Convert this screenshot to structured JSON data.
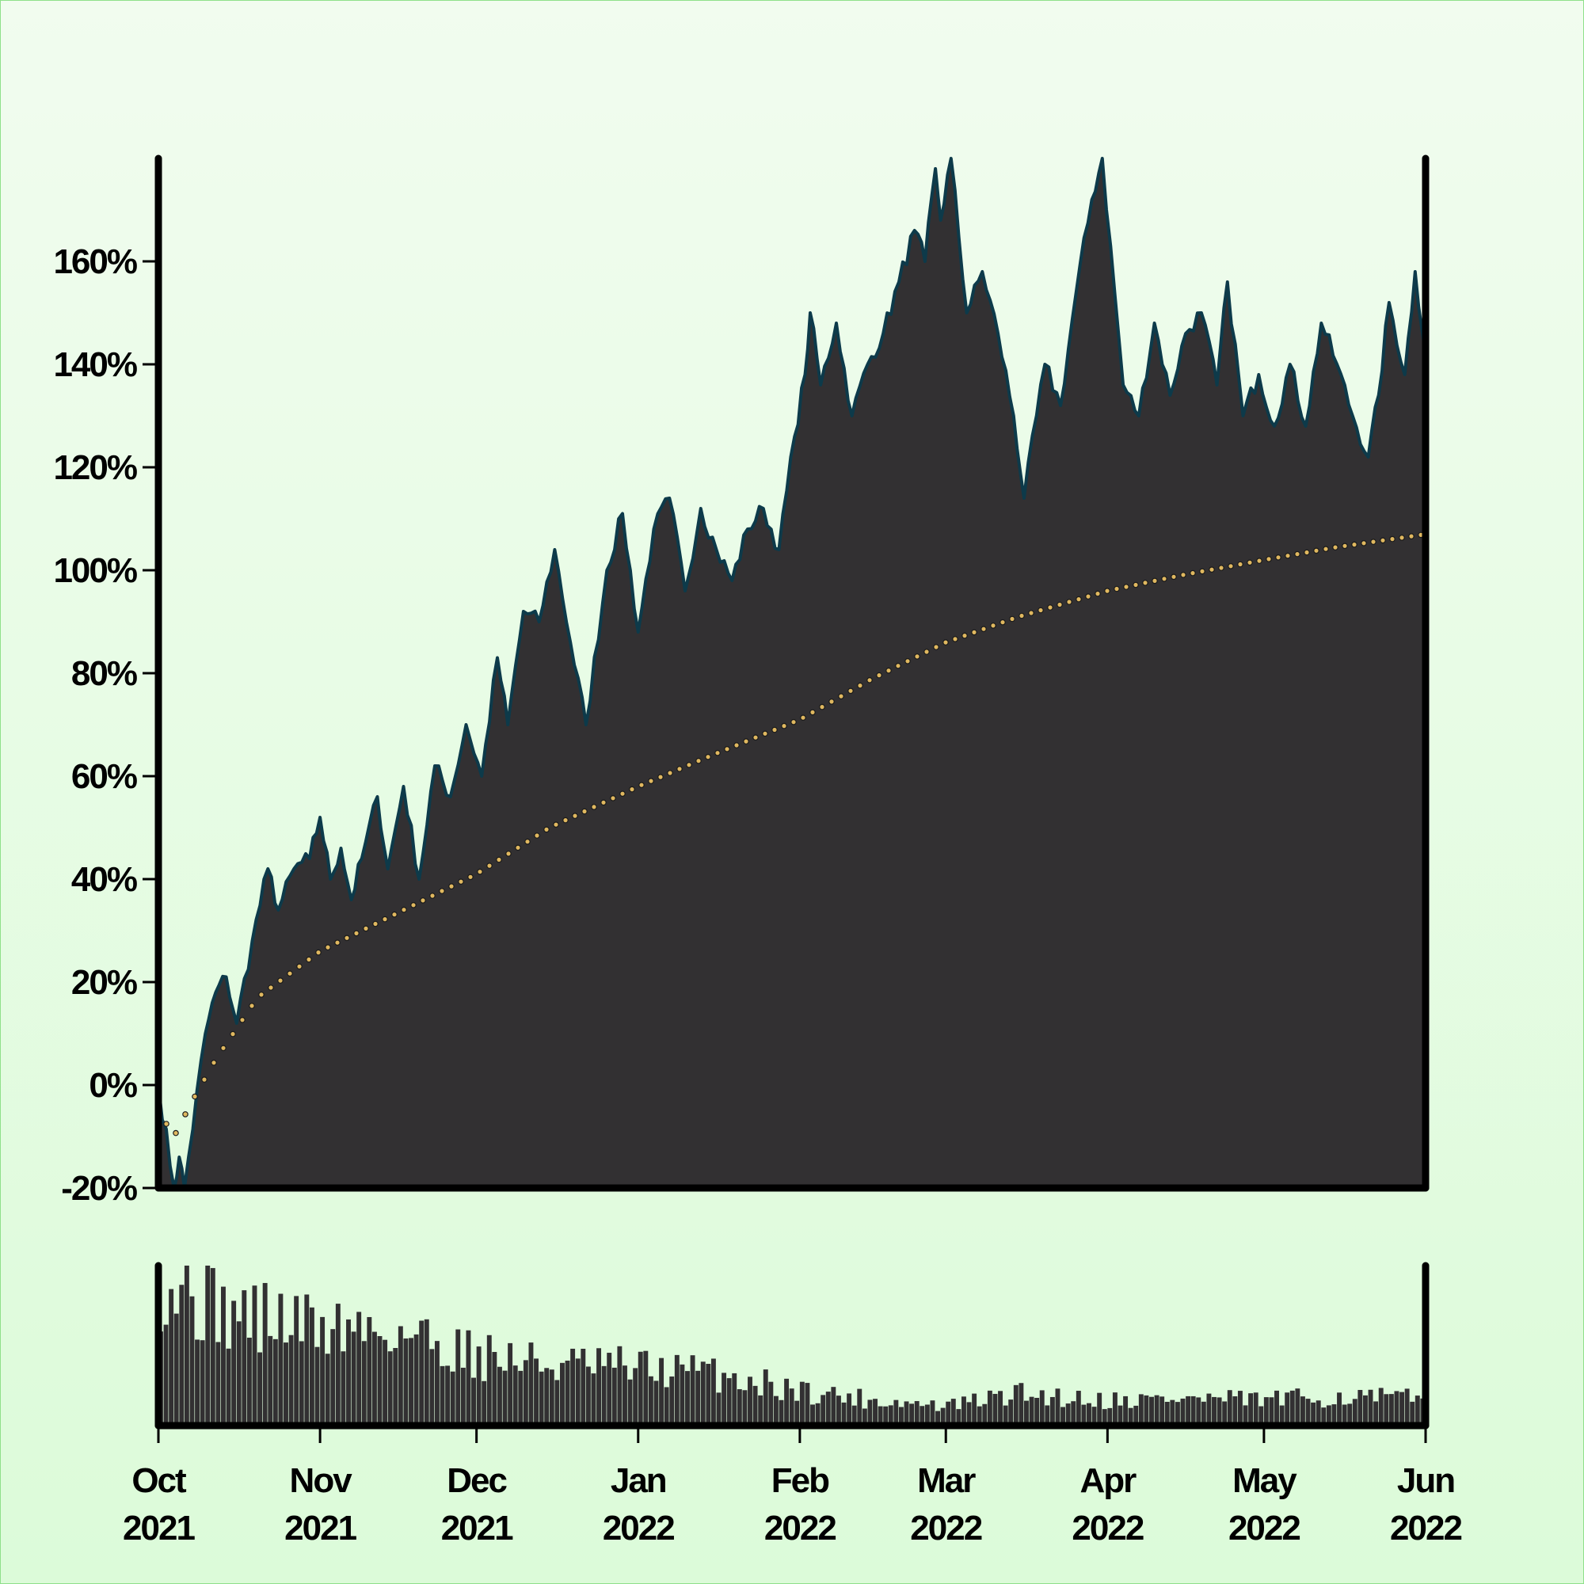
{
  "colors": {
    "background_top": "#f1fcef",
    "background_bottom": "#dcfbd9",
    "area_fill": "#323032",
    "price_line": "#0d3a4a",
    "average_dots": "#e0b860",
    "axis": "#000000"
  },
  "chart_data": [
    {
      "type": "area",
      "title": "",
      "xlabel": "",
      "ylabel": "",
      "x_range": [
        "2021-10-01",
        "2022-06-01"
      ],
      "ylim": [
        -20,
        180
      ],
      "y_ticks": [
        -20,
        0,
        20,
        40,
        60,
        80,
        100,
        120,
        140,
        160
      ],
      "y_tick_labels": [
        "-20%",
        "0%",
        "20%",
        "40%",
        "60%",
        "80%",
        "100%",
        "120%",
        "140%",
        "160%"
      ],
      "grid": false,
      "series": [
        {
          "style": "filled area with outline",
          "points": [
            [
              "2021-10-01",
              0
            ],
            [
              "2021-10-04",
              -20
            ],
            [
              "2021-10-05",
              -14
            ],
            [
              "2021-10-06",
              -20
            ],
            [
              "2021-10-10",
              10
            ],
            [
              "2021-10-12",
              18
            ],
            [
              "2021-10-14",
              21
            ],
            [
              "2021-10-16",
              12
            ],
            [
              "2021-10-19",
              28
            ],
            [
              "2021-10-22",
              42
            ],
            [
              "2021-10-24",
              34
            ],
            [
              "2021-10-27",
              42
            ],
            [
              "2021-10-30",
              44
            ],
            [
              "2021-11-01",
              52
            ],
            [
              "2021-11-03",
              40
            ],
            [
              "2021-11-05",
              46
            ],
            [
              "2021-11-07",
              36
            ],
            [
              "2021-11-09",
              44
            ],
            [
              "2021-11-12",
              56
            ],
            [
              "2021-11-14",
              42
            ],
            [
              "2021-11-17",
              58
            ],
            [
              "2021-11-20",
              40
            ],
            [
              "2021-11-23",
              62
            ],
            [
              "2021-11-26",
              56
            ],
            [
              "2021-11-29",
              70
            ],
            [
              "2021-12-02",
              60
            ],
            [
              "2021-12-05",
              83
            ],
            [
              "2021-12-07",
              70
            ],
            [
              "2021-12-10",
              92
            ],
            [
              "2021-12-13",
              90
            ],
            [
              "2021-12-16",
              104
            ],
            [
              "2021-12-19",
              86
            ],
            [
              "2021-12-22",
              70
            ],
            [
              "2021-12-26",
              100
            ],
            [
              "2021-12-29",
              111
            ],
            [
              "2022-01-01",
              88
            ],
            [
              "2022-01-04",
              108
            ],
            [
              "2022-01-07",
              114
            ],
            [
              "2022-01-10",
              96
            ],
            [
              "2022-01-13",
              112
            ],
            [
              "2022-01-16",
              104
            ],
            [
              "2022-01-19",
              98
            ],
            [
              "2022-01-22",
              108
            ],
            [
              "2022-01-25",
              112
            ],
            [
              "2022-01-28",
              104
            ],
            [
              "2022-01-31",
              126
            ],
            [
              "2022-02-02",
              138
            ],
            [
              "2022-02-03",
              150
            ],
            [
              "2022-02-05",
              136
            ],
            [
              "2022-02-08",
              148
            ],
            [
              "2022-02-11",
              130
            ],
            [
              "2022-02-14",
              140
            ],
            [
              "2022-02-17",
              146
            ],
            [
              "2022-02-20",
              156
            ],
            [
              "2022-02-23",
              166
            ],
            [
              "2022-02-25",
              160
            ],
            [
              "2022-02-27",
              178
            ],
            [
              "2022-02-28",
              168
            ],
            [
              "2022-03-02",
              180
            ],
            [
              "2022-03-05",
              150
            ],
            [
              "2022-03-08",
              158
            ],
            [
              "2022-03-11",
              146
            ],
            [
              "2022-03-14",
              130
            ],
            [
              "2022-03-16",
              114
            ],
            [
              "2022-03-20",
              140
            ],
            [
              "2022-03-23",
              132
            ],
            [
              "2022-03-26",
              154
            ],
            [
              "2022-03-29",
              172
            ],
            [
              "2022-03-31",
              180
            ],
            [
              "2022-04-04",
              136
            ],
            [
              "2022-04-07",
              130
            ],
            [
              "2022-04-10",
              148
            ],
            [
              "2022-04-13",
              134
            ],
            [
              "2022-04-16",
              146
            ],
            [
              "2022-04-19",
              150
            ],
            [
              "2022-04-22",
              136
            ],
            [
              "2022-04-24",
              156
            ],
            [
              "2022-04-27",
              130
            ],
            [
              "2022-04-30",
              138
            ],
            [
              "2022-05-03",
              128
            ],
            [
              "2022-05-06",
              140
            ],
            [
              "2022-05-09",
              128
            ],
            [
              "2022-05-12",
              148
            ],
            [
              "2022-05-15",
              140
            ],
            [
              "2022-05-18",
              130
            ],
            [
              "2022-05-21",
              122
            ],
            [
              "2022-05-23",
              134
            ],
            [
              "2022-05-25",
              152
            ],
            [
              "2022-05-28",
              138
            ],
            [
              "2022-05-30",
              158
            ],
            [
              "2022-06-01",
              142
            ]
          ]
        },
        {
          "style": "dotted cumulative average",
          "points": [
            [
              "2021-10-01",
              -5
            ],
            [
              "2021-10-04",
              -10
            ],
            [
              "2021-10-07",
              -4
            ],
            [
              "2021-10-12",
              5
            ],
            [
              "2021-10-20",
              17
            ],
            [
              "2021-11-01",
              26
            ],
            [
              "2021-11-15",
              33
            ],
            [
              "2021-12-01",
              41
            ],
            [
              "2021-12-15",
              50
            ],
            [
              "2022-01-01",
              58
            ],
            [
              "2022-01-15",
              64
            ],
            [
              "2022-02-01",
              71
            ],
            [
              "2022-02-15",
              79
            ],
            [
              "2022-03-01",
              86
            ],
            [
              "2022-03-15",
              91
            ],
            [
              "2022-04-01",
              96
            ],
            [
              "2022-04-15",
              99
            ],
            [
              "2022-05-01",
              102
            ],
            [
              "2022-05-15",
              104.5
            ],
            [
              "2022-06-01",
              107
            ]
          ]
        }
      ]
    },
    {
      "type": "bar",
      "title": "",
      "xlabel": "",
      "ylabel": "",
      "series": [
        {
          "style": "daily volume bars",
          "relative_levels": [
            [
              "2021-10-01",
              0.95
            ],
            [
              "2021-10-15",
              0.7
            ],
            [
              "2021-11-01",
              0.62
            ],
            [
              "2021-11-15",
              0.6
            ],
            [
              "2021-12-01",
              0.45
            ],
            [
              "2021-12-15",
              0.38
            ],
            [
              "2022-01-01",
              0.36
            ],
            [
              "2022-01-15",
              0.33
            ],
            [
              "2022-02-01",
              0.22
            ],
            [
              "2022-02-15",
              0.16
            ],
            [
              "2022-03-01",
              0.12
            ],
            [
              "2022-03-15",
              0.2
            ],
            [
              "2022-04-01",
              0.16
            ],
            [
              "2022-04-15",
              0.17
            ],
            [
              "2022-05-01",
              0.16
            ],
            [
              "2022-05-15",
              0.18
            ],
            [
              "2022-06-01",
              0.17
            ]
          ]
        }
      ]
    }
  ],
  "x_ticks": [
    {
      "date": "2021-10-01",
      "month": "Oct",
      "year": "2021"
    },
    {
      "date": "2021-11-01",
      "month": "Nov",
      "year": "2021"
    },
    {
      "date": "2021-12-01",
      "month": "Dec",
      "year": "2021"
    },
    {
      "date": "2022-01-01",
      "month": "Jan",
      "year": "2022"
    },
    {
      "date": "2022-02-01",
      "month": "Feb",
      "year": "2022"
    },
    {
      "date": "2022-03-01",
      "month": "Mar",
      "year": "2022"
    },
    {
      "date": "2022-04-01",
      "month": "Apr",
      "year": "2022"
    },
    {
      "date": "2022-05-01",
      "month": "May",
      "year": "2022"
    },
    {
      "date": "2022-06-01",
      "month": "Jun",
      "year": "2022"
    }
  ]
}
